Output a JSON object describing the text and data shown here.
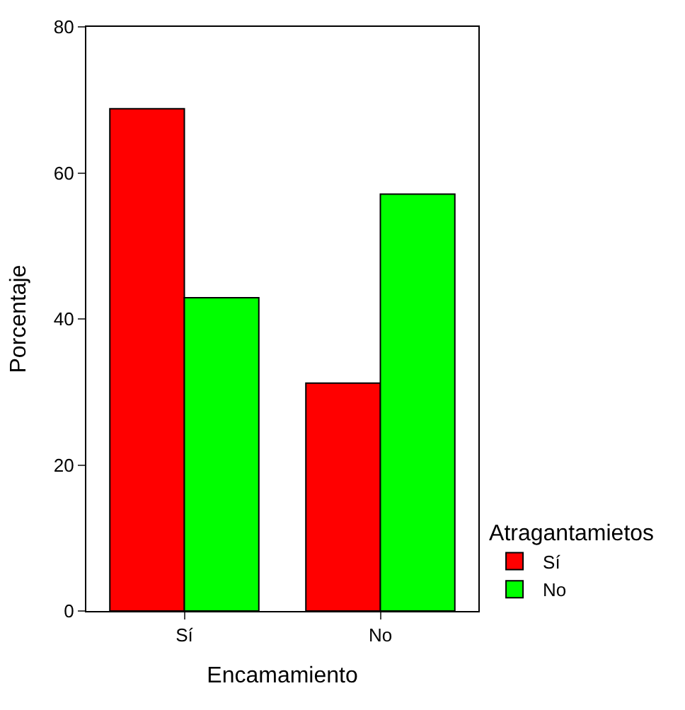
{
  "chart_data": {
    "type": "bar",
    "xlabel": "Encamamiento",
    "ylabel": "Porcentaje",
    "legend_title": "Atragantamietos",
    "categories": [
      "Sí",
      "No"
    ],
    "series": [
      {
        "name": "Sí",
        "color": "#ff0000",
        "values": [
          68.8,
          31.2
        ]
      },
      {
        "name": "No",
        "color": "#00ff00",
        "values": [
          42.9,
          57.1
        ]
      }
    ],
    "ylim": [
      0,
      80
    ],
    "yticks": [
      0,
      20,
      40,
      60,
      80
    ],
    "grid": false,
    "legend": "right"
  }
}
